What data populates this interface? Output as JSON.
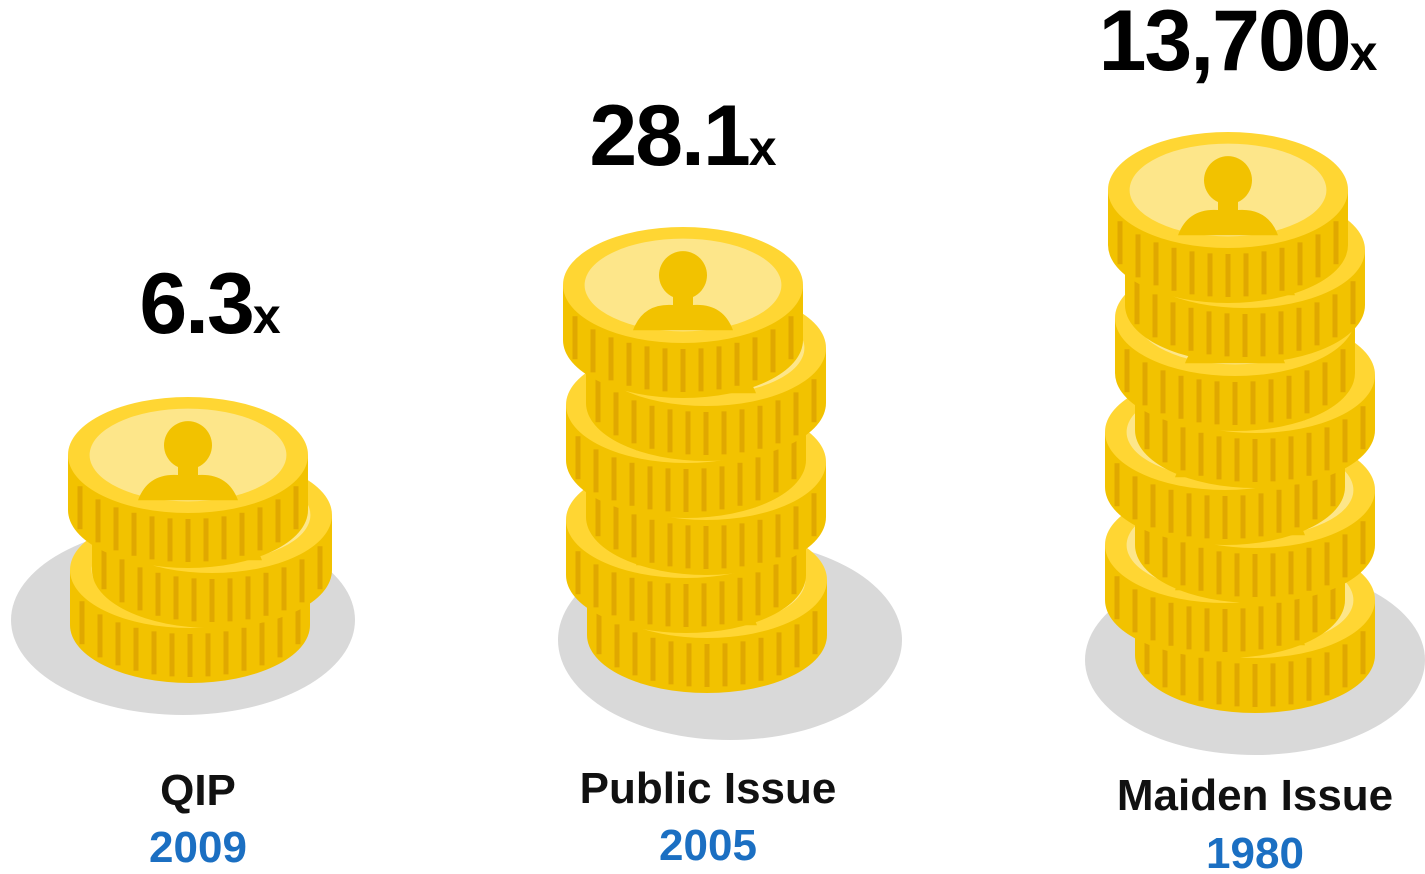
{
  "items": [
    {
      "value": "6.3",
      "unit": "x",
      "label": "QIP",
      "year": "2009"
    },
    {
      "value": "28.1",
      "unit": "x",
      "label": "Public Issue",
      "year": "2005"
    },
    {
      "value": "13,700",
      "unit": "x",
      "label": "Maiden Issue",
      "year": "1980"
    }
  ]
}
